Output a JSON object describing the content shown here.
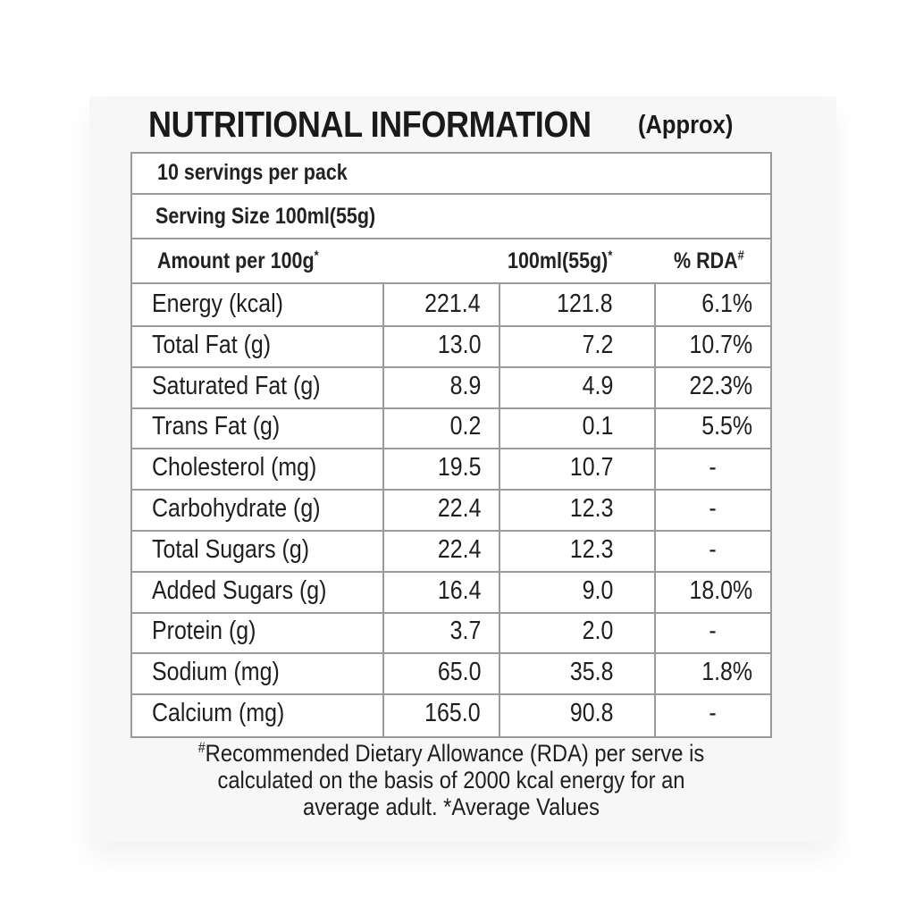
{
  "title": {
    "main": "NUTRITIONAL INFORMATION",
    "sub": "(Approx)"
  },
  "header_rows": {
    "servings": "10 servings per pack",
    "serving_size": "Serving Size 100ml(55g)",
    "amount_label": "Amount per 100g",
    "amount_mark": "*",
    "col_serving": "100ml(55g)",
    "col_serving_mark": "*",
    "col_rda": "% RDA",
    "col_rda_mark": "#"
  },
  "rows": [
    {
      "nutrient": "Energy (kcal)",
      "per100g": "221.4",
      "perServe": "121.8",
      "rda": "6.1%"
    },
    {
      "nutrient": "Total Fat (g)",
      "per100g": "13.0",
      "perServe": "7.2",
      "rda": "10.7%"
    },
    {
      "nutrient": "Saturated Fat (g)",
      "per100g": "8.9",
      "perServe": "4.9",
      "rda": "22.3%"
    },
    {
      "nutrient": "Trans Fat (g)",
      "per100g": "0.2",
      "perServe": "0.1",
      "rda": "5.5%"
    },
    {
      "nutrient": "Cholesterol (mg)",
      "per100g": "19.5",
      "perServe": "10.7",
      "rda": "-"
    },
    {
      "nutrient": "Carbohydrate (g)",
      "per100g": "22.4",
      "perServe": "12.3",
      "rda": "-"
    },
    {
      "nutrient": "Total Sugars (g)",
      "per100g": "22.4",
      "perServe": "12.3",
      "rda": "-"
    },
    {
      "nutrient": "Added Sugars (g)",
      "per100g": "16.4",
      "perServe": "9.0",
      "rda": "18.0%"
    },
    {
      "nutrient": "Protein (g)",
      "per100g": "3.7",
      "perServe": "2.0",
      "rda": "-"
    },
    {
      "nutrient": "Sodium (mg)",
      "per100g": "65.0",
      "perServe": "35.8",
      "rda": "1.8%"
    },
    {
      "nutrient": "Calcium (mg)",
      "per100g": "165.0",
      "perServe": "90.8",
      "rda": "-"
    }
  ],
  "footnote": {
    "mark": "#",
    "line1": "Recommended Dietary Allowance (RDA) per serve is",
    "line2": "calculated on the basis of 2000 kcal energy for an",
    "line3": "average adult. *Average Values"
  }
}
